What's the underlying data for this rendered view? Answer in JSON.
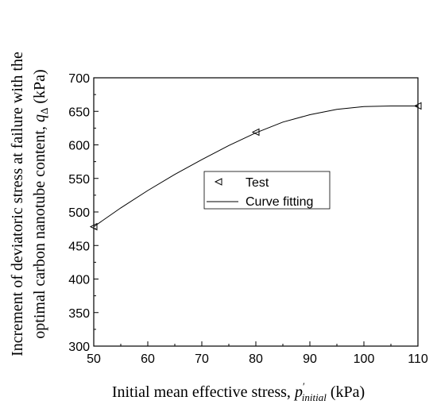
{
  "chart_data": {
    "type": "scatter",
    "x": [
      50,
      80,
      110
    ],
    "series": [
      {
        "name": "Test",
        "kind": "marker",
        "marker": "triangle-left",
        "values": [
          478,
          619,
          658
        ]
      },
      {
        "name": "Curve fitting",
        "kind": "line",
        "curve": "quadratic",
        "x": [
          50,
          55,
          60,
          65,
          70,
          75,
          80,
          85,
          90,
          95,
          100,
          105,
          110
        ],
        "values": [
          478,
          506,
          532,
          556,
          578,
          599,
          618,
          634,
          645,
          653,
          657,
          658,
          658
        ]
      }
    ],
    "xlabel": "Initial mean effective stress, p′initial (kPa)",
    "xlabel_parts": {
      "main": "Initial mean effective stress, ",
      "var": "p",
      "prime": "′",
      "sub": "initial",
      "unit": " (kPa)"
    },
    "ylabel_line1": "Increment of deviatoric stress at failure with the",
    "ylabel_line2": {
      "main": "optimal carbon nanotube content, ",
      "var": "q",
      "sub": "Δ",
      "unit": " (kPa)"
    },
    "xlim": [
      50,
      110
    ],
    "ylim": [
      300,
      700
    ],
    "xticks": [
      50,
      60,
      70,
      80,
      90,
      100,
      110
    ],
    "yticks": [
      300,
      350,
      400,
      450,
      500,
      550,
      600,
      650,
      700
    ],
    "grid": false,
    "legend": {
      "position": "center",
      "entries": [
        "Test",
        "Curve fitting"
      ]
    },
    "colors": {
      "line": "#000000",
      "marker": "#000000"
    }
  }
}
